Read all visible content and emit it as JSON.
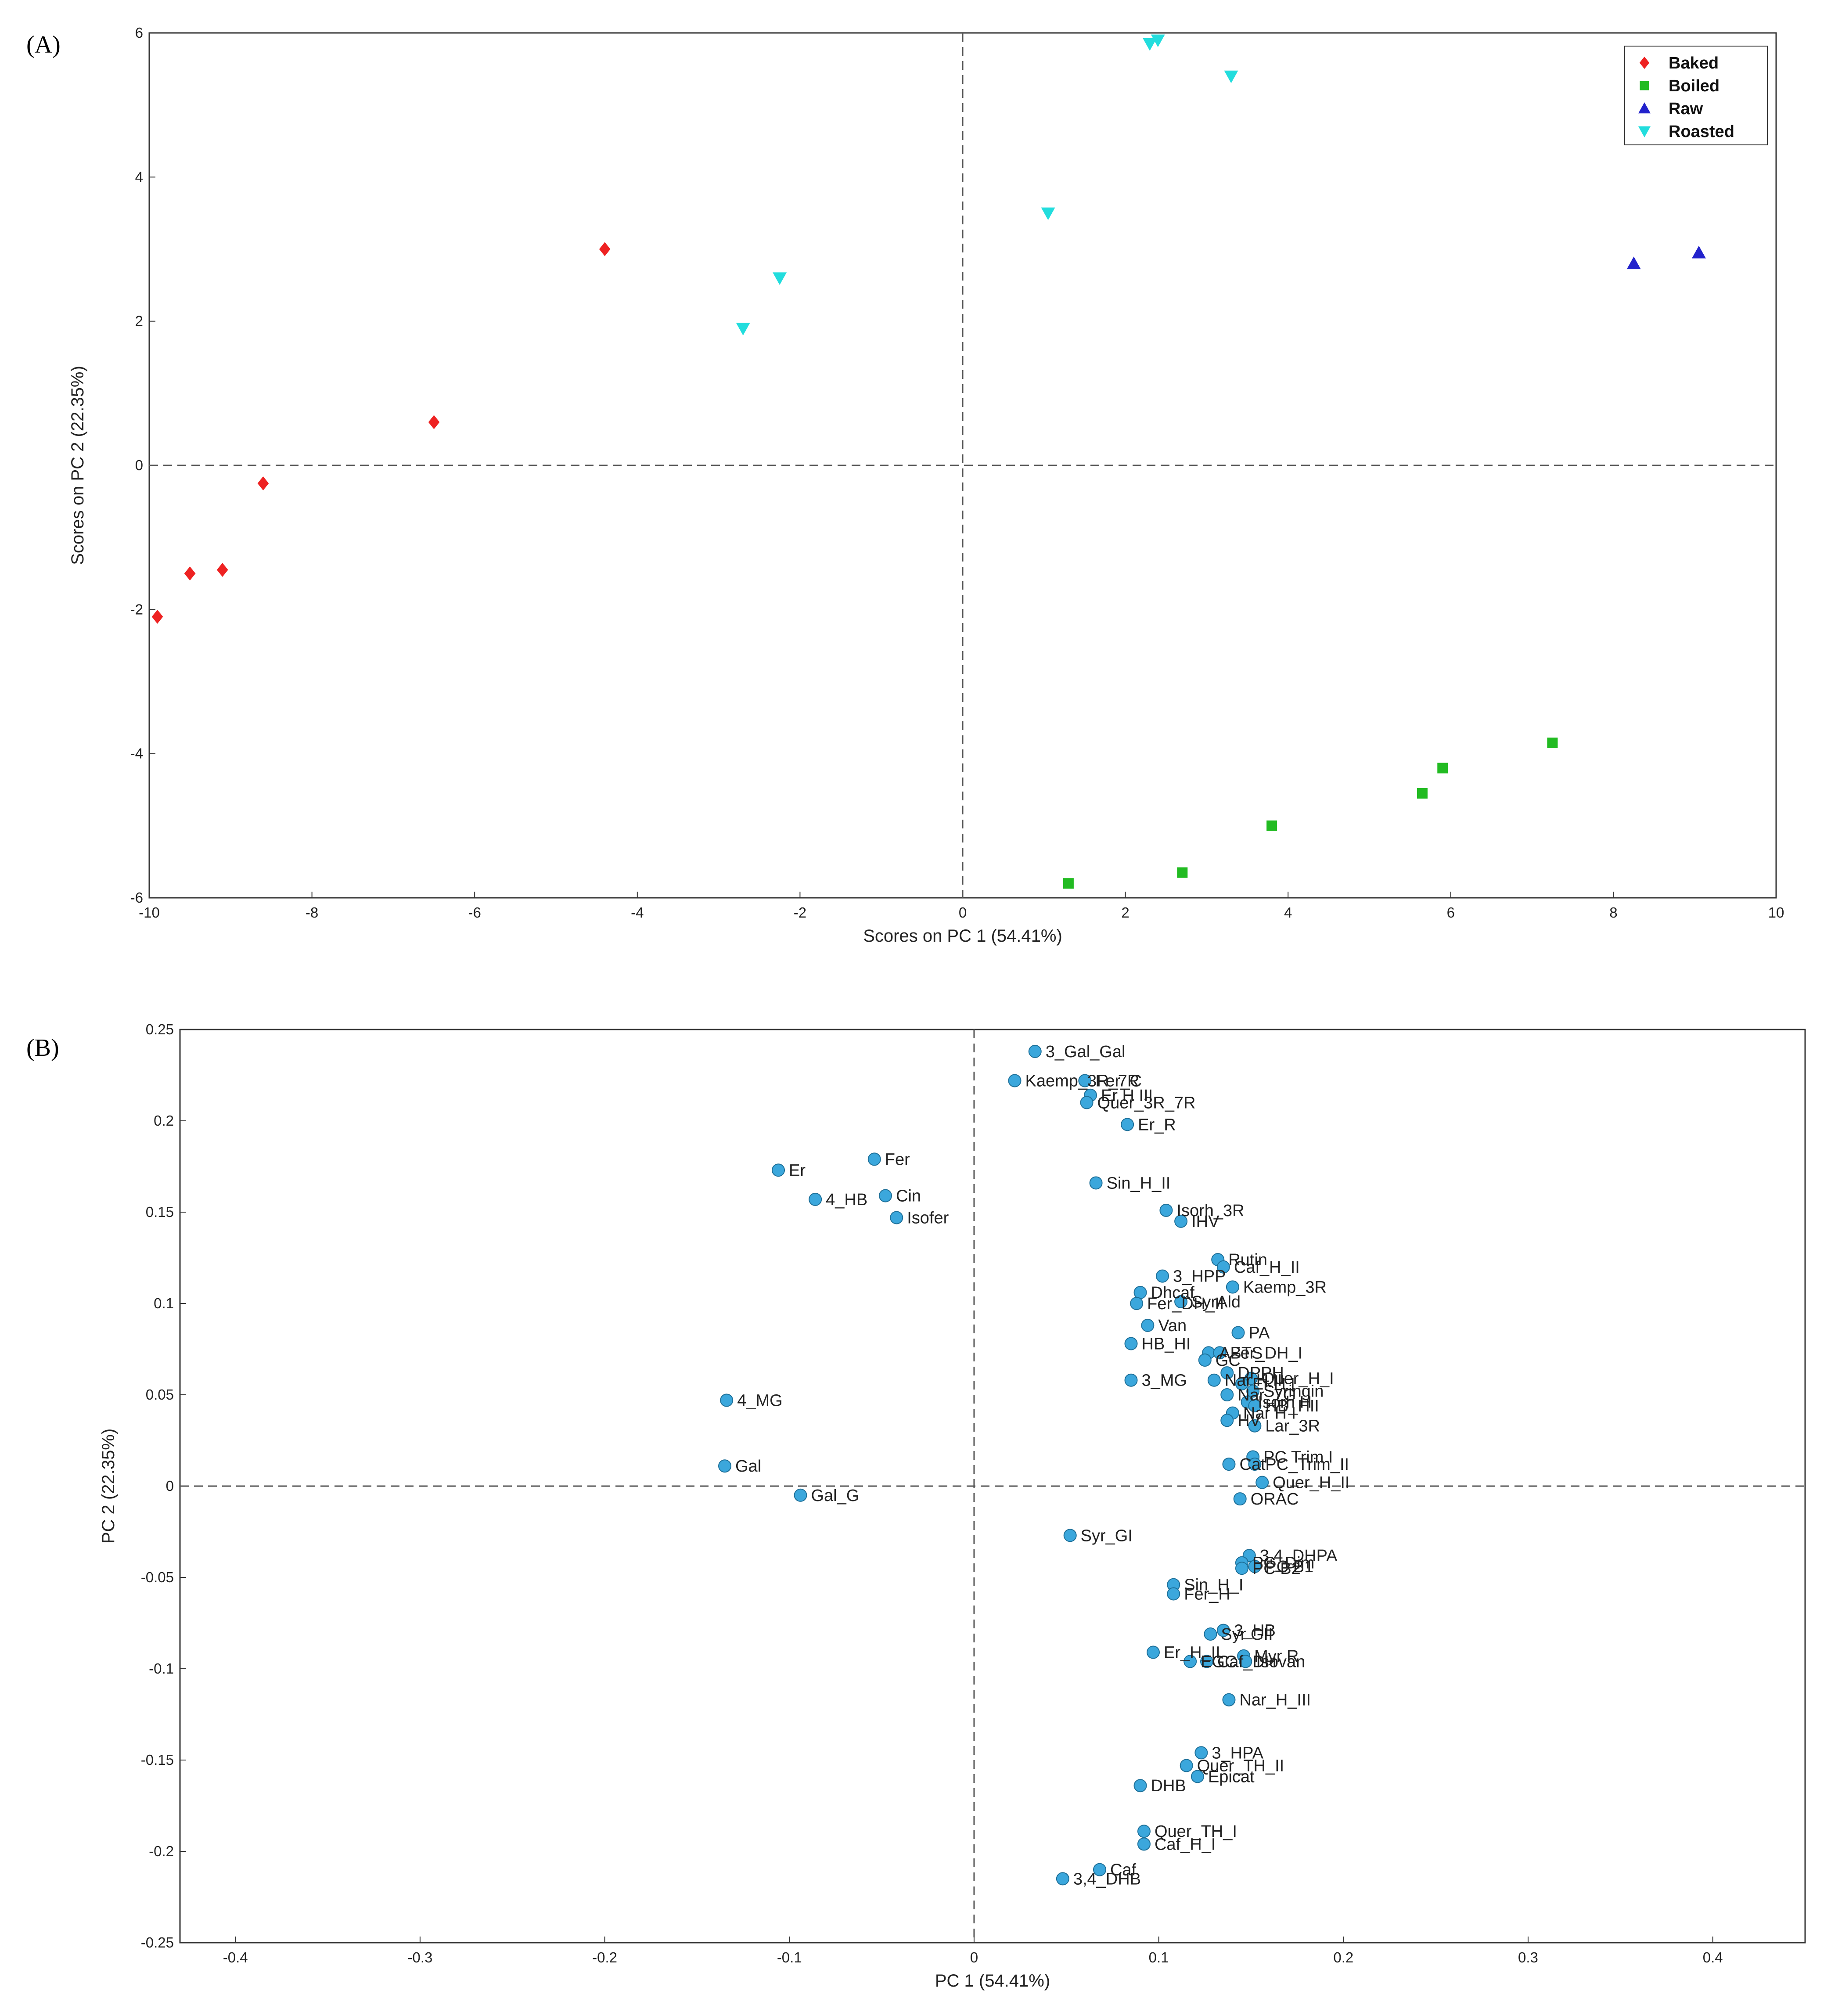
{
  "figure": {
    "panel_a_label": "(A)",
    "panel_b_label": "(B)"
  },
  "chart_data": [
    {
      "type": "scatter",
      "title": "",
      "xlabel": "Scores on PC 1 (54.41%)",
      "ylabel": "Scores on PC 2 (22.35%)",
      "xlim": [
        -10,
        10
      ],
      "ylim": [
        -6,
        6
      ],
      "xticks": [
        -10,
        -8,
        -6,
        -4,
        -2,
        0,
        2,
        4,
        6,
        8,
        10
      ],
      "yticks": [
        -6,
        -4,
        -2,
        0,
        2,
        4,
        6
      ],
      "reference_lines": {
        "x": 0,
        "y": 0
      },
      "legend_position": "top-right",
      "series": [
        {
          "name": "Baked",
          "color": "#ee2222",
          "marker": "diamond",
          "points": [
            [
              -9.9,
              -2.1
            ],
            [
              -9.5,
              -1.5
            ],
            [
              -9.1,
              -1.45
            ],
            [
              -8.6,
              -0.25
            ],
            [
              -6.5,
              0.6
            ],
            [
              -4.4,
              3.0
            ]
          ]
        },
        {
          "name": "Boiled",
          "color": "#22bb22",
          "marker": "square",
          "points": [
            [
              1.3,
              -5.8
            ],
            [
              2.7,
              -5.65
            ],
            [
              3.8,
              -5.0
            ],
            [
              5.65,
              -4.55
            ],
            [
              5.9,
              -4.2
            ],
            [
              7.25,
              -3.85
            ]
          ]
        },
        {
          "name": "Raw",
          "color": "#2222cc",
          "marker": "triangle-up",
          "points": [
            [
              8.25,
              2.8
            ],
            [
              9.05,
              2.95
            ]
          ]
        },
        {
          "name": "Roasted",
          "color": "#22dddd",
          "marker": "triangle-down",
          "points": [
            [
              -2.7,
              1.9
            ],
            [
              -2.25,
              2.6
            ],
            [
              1.05,
              3.5
            ],
            [
              2.3,
              5.85
            ],
            [
              2.4,
              5.9
            ],
            [
              3.3,
              5.4
            ]
          ]
        }
      ]
    },
    {
      "type": "scatter",
      "title": "",
      "xlabel": "PC 1 (54.41%)",
      "ylabel": "PC 2 (22.35%)",
      "xlim": [
        -0.43,
        0.45
      ],
      "ylim": [
        -0.25,
        0.25
      ],
      "xticks": [
        -0.4,
        -0.3,
        -0.2,
        -0.1,
        0,
        0.1,
        0.2,
        0.3,
        0.4
      ],
      "yticks": [
        -0.25,
        -0.2,
        -0.15,
        -0.1,
        -0.05,
        0,
        0.05,
        0.1,
        0.15,
        0.2,
        0.25
      ],
      "reference_lines": {
        "x": 0,
        "y": 0
      },
      "marker_color": "#3ba7dc",
      "points": [
        {
          "label": "3_Gal_Gal",
          "x": 0.033,
          "y": 0.238
        },
        {
          "label": "Kaemp_3R_7R",
          "x": 0.022,
          "y": 0.222
        },
        {
          "label": "Fer_C",
          "x": 0.06,
          "y": 0.222
        },
        {
          "label": "Er H III",
          "x": 0.063,
          "y": 0.214
        },
        {
          "label": "Quer_3R_7R",
          "x": 0.061,
          "y": 0.21
        },
        {
          "label": "Er_R",
          "x": 0.083,
          "y": 0.198
        },
        {
          "label": "Er",
          "x": -0.106,
          "y": 0.173
        },
        {
          "label": "Fer",
          "x": -0.054,
          "y": 0.179
        },
        {
          "label": "Cin",
          "x": -0.048,
          "y": 0.159
        },
        {
          "label": "4_HB",
          "x": -0.086,
          "y": 0.157
        },
        {
          "label": "Isofer",
          "x": -0.042,
          "y": 0.147
        },
        {
          "label": "Sin_H_II",
          "x": 0.066,
          "y": 0.166
        },
        {
          "label": "Isorh_3R",
          "x": 0.104,
          "y": 0.151
        },
        {
          "label": "IHV",
          "x": 0.112,
          "y": 0.145
        },
        {
          "label": "Rutin",
          "x": 0.132,
          "y": 0.124
        },
        {
          "label": "Caf_H_II",
          "x": 0.135,
          "y": 0.12
        },
        {
          "label": "3_HPP",
          "x": 0.102,
          "y": 0.115
        },
        {
          "label": "Kaemp_3R",
          "x": 0.14,
          "y": 0.109
        },
        {
          "label": "Dhcaf",
          "x": 0.09,
          "y": 0.106
        },
        {
          "label": "SyrAld",
          "x": 0.112,
          "y": 0.101
        },
        {
          "label": "Fer_DH_II",
          "x": 0.088,
          "y": 0.1
        },
        {
          "label": "Van",
          "x": 0.094,
          "y": 0.088
        },
        {
          "label": "PA",
          "x": 0.143,
          "y": 0.084
        },
        {
          "label": "HB_HI",
          "x": 0.085,
          "y": 0.078
        },
        {
          "label": "ABTS",
          "x": 0.127,
          "y": 0.073
        },
        {
          "label": "Fer_DH_I",
          "x": 0.133,
          "y": 0.073
        },
        {
          "label": "GC",
          "x": 0.125,
          "y": 0.069
        },
        {
          "label": "DPPH",
          "x": 0.137,
          "y": 0.062
        },
        {
          "label": "3_MG",
          "x": 0.085,
          "y": 0.058
        },
        {
          "label": "Nar H II",
          "x": 0.13,
          "y": 0.058
        },
        {
          "label": "Quer_H_I",
          "x": 0.15,
          "y": 0.059
        },
        {
          "label": "Er H I",
          "x": 0.145,
          "y": 0.056
        },
        {
          "label": "Syringin",
          "x": 0.151,
          "y": 0.052
        },
        {
          "label": "Nar_7G",
          "x": 0.137,
          "y": 0.05
        },
        {
          "label": "Isorh H",
          "x": 0.148,
          "y": 0.046
        },
        {
          "label": "HB_HII",
          "x": 0.152,
          "y": 0.044
        },
        {
          "label": "Nar H I",
          "x": 0.14,
          "y": 0.04
        },
        {
          "label": "HV",
          "x": 0.137,
          "y": 0.036
        },
        {
          "label": "Lar_3R",
          "x": 0.152,
          "y": 0.033
        },
        {
          "label": "Cat",
          "x": 0.138,
          "y": 0.012
        },
        {
          "label": "PC Trim I",
          "x": 0.151,
          "y": 0.016
        },
        {
          "label": "PC_Trim_II",
          "x": 0.152,
          "y": 0.012
        },
        {
          "label": "Quer_H_II",
          "x": 0.156,
          "y": 0.002
        },
        {
          "label": "ORAC",
          "x": 0.144,
          "y": -0.007
        },
        {
          "label": "4_MG",
          "x": -0.134,
          "y": 0.047
        },
        {
          "label": "Gal",
          "x": -0.135,
          "y": 0.011
        },
        {
          "label": "Gal_G",
          "x": -0.094,
          "y": -0.005
        },
        {
          "label": "Syr_GI",
          "x": 0.052,
          "y": -0.027
        },
        {
          "label": "3,4_DHPA",
          "x": 0.149,
          "y": -0.038
        },
        {
          "label": "PC_Dim",
          "x": 0.145,
          "y": -0.042
        },
        {
          "label": "PC B1",
          "x": 0.152,
          "y": -0.044
        },
        {
          "label": "PC B2",
          "x": 0.145,
          "y": -0.045
        },
        {
          "label": "Sin_H_I",
          "x": 0.108,
          "y": -0.054
        },
        {
          "label": "Fer_H",
          "x": 0.108,
          "y": -0.059
        },
        {
          "label": "3_HB",
          "x": 0.135,
          "y": -0.079
        },
        {
          "label": "Syr GII",
          "x": 0.128,
          "y": -0.081
        },
        {
          "label": "Myr R",
          "x": 0.146,
          "y": -0.093
        },
        {
          "label": "Isovan",
          "x": 0.147,
          "y": -0.096
        },
        {
          "label": "Er_H_II",
          "x": 0.097,
          "y": -0.091
        },
        {
          "label": "EGC",
          "x": 0.117,
          "y": -0.096
        },
        {
          "label": "Caf_DH",
          "x": 0.126,
          "y": -0.096
        },
        {
          "label": "Nar_H_III",
          "x": 0.138,
          "y": -0.117
        },
        {
          "label": "3_HPA",
          "x": 0.123,
          "y": -0.146
        },
        {
          "label": "Quer_TH_II",
          "x": 0.115,
          "y": -0.153
        },
        {
          "label": "Epicat",
          "x": 0.121,
          "y": -0.159
        },
        {
          "label": "DHB",
          "x": 0.09,
          "y": -0.164
        },
        {
          "label": "Quer_TH_I",
          "x": 0.092,
          "y": -0.189
        },
        {
          "label": "Caf_H_I",
          "x": 0.092,
          "y": -0.196
        },
        {
          "label": "Caf",
          "x": 0.068,
          "y": -0.21
        },
        {
          "label": "3,4_DHB",
          "x": 0.048,
          "y": -0.215
        }
      ]
    }
  ]
}
